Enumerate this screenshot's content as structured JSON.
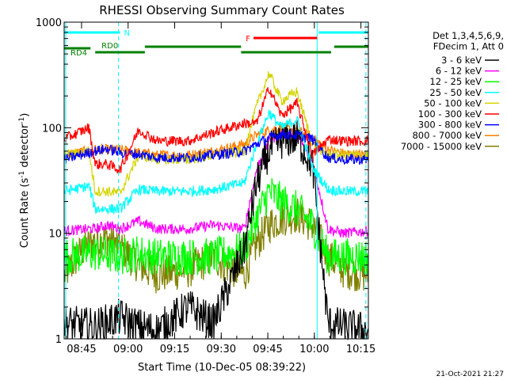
{
  "chart_data": {
    "type": "line",
    "title": "RHESSI Observing Summary Count Rates",
    "xlabel": "Start Time (10-Dec-05 08:39:22)",
    "ylabel_main": "Count Rate (s",
    "ylabel_sup1": "-1",
    "ylabel_mid": " detector",
    "ylabel_sup2": "-1",
    "ylabel_end": ")",
    "x_unit": "minutes after 08:39:22",
    "xlim": [
      0,
      98
    ],
    "ylim": [
      1,
      1000
    ],
    "yscale": "log",
    "x_ticks": [
      {
        "label": "08:45",
        "t": 5.6
      },
      {
        "label": "09:00",
        "t": 20.6
      },
      {
        "label": "09:15",
        "t": 35.6
      },
      {
        "label": "09:30",
        "t": 50.6
      },
      {
        "label": "09:45",
        "t": 65.6
      },
      {
        "label": "10:00",
        "t": 80.6
      },
      {
        "label": "10:15",
        "t": 95.6
      }
    ],
    "y_ticks": [
      {
        "label": "1",
        "v": 1
      },
      {
        "label": "10",
        "v": 10
      },
      {
        "label": "100",
        "v": 100
      },
      {
        "label": "1000",
        "v": 1000
      }
    ],
    "legend": {
      "placement": "right",
      "header": [
        "Det 1,3,4,5,6,9,",
        "FDecim 1, Att 0"
      ]
    },
    "series": [
      {
        "name": "3 - 6 keV",
        "color": "#000000",
        "x": [
          0,
          10,
          18,
          24,
          30,
          40,
          48,
          58,
          62,
          66,
          70,
          75,
          80,
          85,
          90,
          98
        ],
        "y": [
          1.4,
          1.3,
          1.6,
          1.3,
          1.2,
          2,
          1.4,
          7,
          30,
          60,
          75,
          80,
          45,
          1.4,
          1.3,
          1.2
        ]
      },
      {
        "name": "6 - 12 keV",
        "color": "#ff00ff",
        "x": [
          0,
          8,
          10,
          14,
          18,
          24,
          30,
          40,
          48,
          58,
          62,
          66,
          70,
          75,
          80,
          85,
          90,
          98
        ],
        "y": [
          10.5,
          11,
          11,
          12,
          11,
          13,
          11,
          11,
          12,
          11,
          40,
          75,
          88,
          85,
          48,
          11,
          10,
          10.5
        ]
      },
      {
        "name": "12 - 25 keV",
        "color": "#00ff00",
        "x": [
          0,
          10,
          18,
          24,
          30,
          40,
          48,
          58,
          62,
          66,
          70,
          75,
          80,
          85,
          90,
          98
        ],
        "y": [
          6,
          6.5,
          6,
          6.5,
          6,
          6,
          6,
          7,
          14,
          25,
          20,
          17,
          12,
          6,
          6,
          6
        ]
      },
      {
        "name": "25 - 50 keV",
        "color": "#00ffff",
        "x": [
          0,
          8,
          10,
          14,
          18,
          24,
          30,
          40,
          48,
          58,
          62,
          66,
          70,
          75,
          80,
          85,
          90,
          98
        ],
        "y": [
          25,
          28,
          17,
          17,
          17,
          26,
          25,
          25,
          26,
          30,
          70,
          140,
          100,
          120,
          42,
          26,
          25,
          25
        ]
      },
      {
        "name": "50 - 100 keV",
        "color": "#d4d400",
        "x": [
          0,
          8,
          10,
          14,
          18,
          24,
          30,
          40,
          48,
          58,
          62,
          66,
          70,
          75,
          80,
          85,
          90,
          98
        ],
        "y": [
          55,
          60,
          25,
          25,
          24,
          55,
          50,
          50,
          55,
          60,
          160,
          330,
          180,
          220,
          70,
          55,
          55,
          55
        ]
      },
      {
        "name": "100 - 300 keV",
        "color": "#ff0000",
        "x": [
          0,
          8,
          10,
          14,
          18,
          24,
          30,
          40,
          48,
          58,
          62,
          66,
          70,
          75,
          80,
          85,
          90,
          98
        ],
        "y": [
          78,
          100,
          45,
          45,
          40,
          95,
          75,
          75,
          90,
          110,
          110,
          240,
          130,
          170,
          55,
          78,
          75,
          75
        ]
      },
      {
        "name": "300 - 800 keV",
        "color": "#0000ff",
        "x": [
          0,
          8,
          10,
          14,
          18,
          24,
          30,
          40,
          48,
          58,
          62,
          66,
          70,
          75,
          80,
          85,
          90,
          98
        ],
        "y": [
          50,
          58,
          60,
          63,
          58,
          56,
          52,
          52,
          55,
          60,
          70,
          80,
          87,
          85,
          78,
          52,
          50,
          50
        ]
      },
      {
        "name": "800 - 7000 keV",
        "color": "#ff8000",
        "x": [
          0,
          10,
          18,
          24,
          30,
          40,
          48,
          58,
          62,
          66,
          70,
          75,
          80,
          85,
          90,
          98
        ],
        "y": [
          55,
          62,
          62,
          58,
          55,
          55,
          60,
          70,
          85,
          95,
          100,
          95,
          80,
          62,
          57,
          55
        ]
      },
      {
        "name": "7000 - 15000 keV",
        "color": "#808000",
        "x": [
          0,
          6,
          10,
          14,
          18,
          24,
          30,
          40,
          48,
          52,
          58,
          62,
          66,
          70,
          75,
          80,
          85,
          90,
          98
        ],
        "y": [
          4,
          7,
          8.5,
          9,
          7.5,
          5,
          4,
          4.5,
          6,
          5,
          4,
          8,
          12,
          14,
          15,
          12,
          6,
          4.5,
          4
        ]
      }
    ],
    "bars": [
      {
        "label": "N",
        "color": "#00ffff",
        "label_pos": "right",
        "segments": [
          [
            0,
            18
          ],
          [
            82,
            98
          ]
        ]
      },
      {
        "label": "F",
        "color": "#ff0000",
        "label_pos": "left",
        "segments": [
          [
            61,
            81.5
          ]
        ]
      },
      {
        "label": "RD0",
        "color": "#008000",
        "label_pos": "left",
        "segments": [
          [
            10,
            26
          ]
        ]
      },
      {
        "label": "RD4",
        "color": "#008000",
        "label_pos": "right",
        "segments": [
          [
            0,
            8.5
          ],
          [
            26,
            57
          ],
          [
            57,
            86
          ],
          [
            87,
            98
          ]
        ]
      }
    ],
    "vlines": [
      {
        "t": 0.5,
        "color": "#00ffff",
        "style": "solid"
      },
      {
        "t": 17.5,
        "color": "#00ffff",
        "style": "dashed"
      },
      {
        "t": 81.5,
        "color": "#00ffff",
        "style": "solid"
      },
      {
        "t": 97.2,
        "color": "#00ffff",
        "style": "dashed"
      }
    ],
    "grid": false
  },
  "footer_date": "21-Oct-2021 21:27"
}
